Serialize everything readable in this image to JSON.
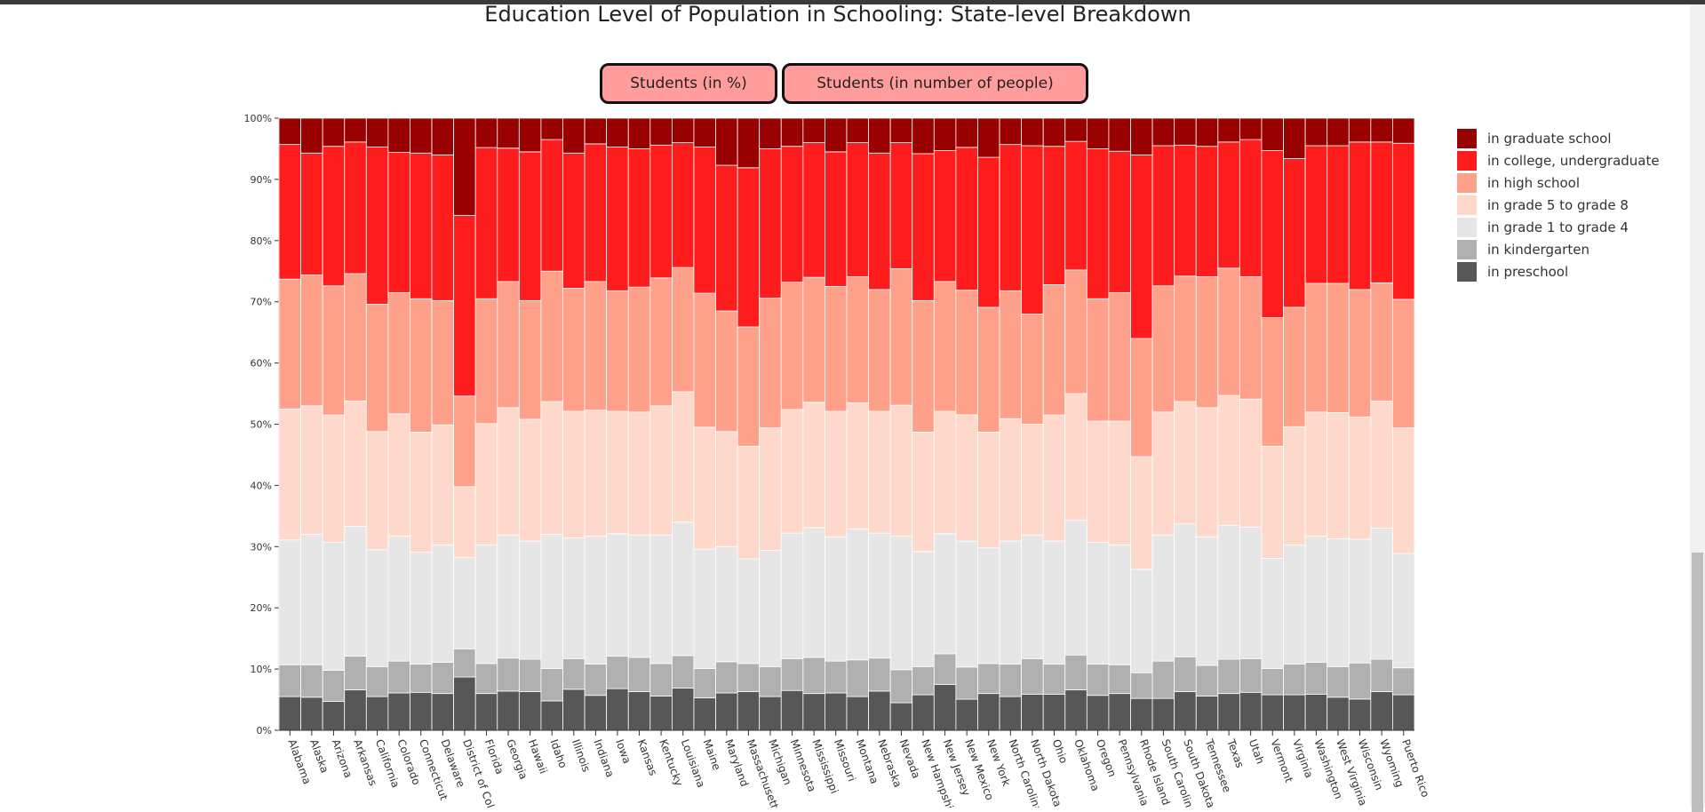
{
  "title": "Education Level of Population in Schooling: State-level Breakdown",
  "buttons": {
    "percent": "Students (in %)",
    "number": "Students (in number of people)"
  },
  "legend": [
    {
      "label": "in graduate school",
      "color": "#990000"
    },
    {
      "label": "in college, undergraduate",
      "color": "#ff1c1c"
    },
    {
      "label": "in high school",
      "color": "#ffa08a"
    },
    {
      "label": "in grade 5 to grade 8",
      "color": "#ffd8cc"
    },
    {
      "label": "in grade 1 to grade 4",
      "color": "#e6e6e6"
    },
    {
      "label": "in kindergarten",
      "color": "#b0b0b0"
    },
    {
      "label": "in preschool",
      "color": "#575757"
    }
  ],
  "chart_data": {
    "type": "bar",
    "stacked": true,
    "title": "Education Level of Population in Schooling: State-level Breakdown",
    "ylim": [
      0,
      100
    ],
    "yticks": [
      "0%",
      "10%",
      "20%",
      "30%",
      "40%",
      "50%",
      "60%",
      "70%",
      "80%",
      "90%",
      "100%"
    ],
    "categories": [
      "Alabama",
      "Alaska",
      "Arizona",
      "Arkansas",
      "California",
      "Colorado",
      "Connecticut",
      "Delaware",
      "District of Columbia",
      "Florida",
      "Georgia",
      "Hawaii",
      "Idaho",
      "Illinois",
      "Indiana",
      "Iowa",
      "Kansas",
      "Kentucky",
      "Louisiana",
      "Maine",
      "Maryland",
      "Massachusetts",
      "Michigan",
      "Minnesota",
      "Mississippi",
      "Missouri",
      "Montana",
      "Nebraska",
      "Nevada",
      "New Hampshire",
      "New Jersey",
      "New Mexico",
      "New York",
      "North Carolina",
      "North Dakota",
      "Ohio",
      "Oklahoma",
      "Oregon",
      "Pennsylvania",
      "Rhode Island",
      "South Carolina",
      "South Dakota",
      "Tennessee",
      "Texas",
      "Utah",
      "Vermont",
      "Virginia",
      "Washington",
      "West Virginia",
      "Wisconsin",
      "Wyoming",
      "Puerto Rico"
    ],
    "series": [
      {
        "name": "in preschool",
        "color": "#575757",
        "values": [
          5.5,
          5.4,
          4.7,
          6.6,
          5.5,
          6.1,
          6.2,
          6.0,
          8.7,
          6.0,
          6.4,
          6.3,
          4.8,
          6.7,
          5.7,
          6.8,
          6.3,
          5.6,
          6.9,
          5.3,
          6.1,
          6.3,
          5.5,
          6.5,
          6.0,
          6.1,
          5.5,
          6.4,
          4.5,
          5.8,
          7.5,
          5.1,
          6.0,
          5.5,
          5.9,
          5.9,
          6.6,
          5.7,
          6.0,
          5.2,
          5.2,
          6.3,
          5.6,
          6.0,
          6.2,
          5.8,
          5.8,
          5.9,
          5.4,
          5.1,
          6.3,
          5.8
        ]
      },
      {
        "name": "in kindergarten",
        "color": "#b0b0b0",
        "values": [
          5.2,
          5.3,
          5.1,
          5.5,
          4.9,
          5.2,
          4.6,
          5.1,
          4.6,
          4.9,
          5.4,
          5.3,
          5.3,
          5.0,
          5.1,
          5.3,
          5.6,
          5.3,
          5.3,
          4.8,
          5.1,
          4.6,
          4.9,
          5.2,
          5.9,
          5.2,
          6.0,
          5.4,
          5.4,
          4.6,
          5.0,
          5.3,
          4.9,
          5.3,
          5.8,
          4.9,
          5.7,
          5.1,
          4.7,
          4.2,
          6.1,
          5.7,
          5.0,
          5.6,
          5.5,
          4.3,
          5.0,
          5.2,
          5.0,
          5.9,
          5.3,
          4.4
        ]
      },
      {
        "name": "in grade 1 to grade 4",
        "color": "#e6e6e6",
        "values": [
          20.4,
          21.3,
          20.9,
          21.2,
          19.1,
          20.4,
          18.3,
          19.2,
          14.9,
          19.4,
          20.1,
          19.3,
          21.9,
          19.7,
          20.9,
          20.0,
          20.0,
          21.0,
          21.8,
          19.5,
          18.8,
          17.1,
          19.0,
          20.5,
          21.2,
          20.3,
          21.4,
          20.4,
          21.8,
          18.8,
          19.6,
          20.7,
          18.9,
          20.1,
          20.2,
          20.1,
          22.0,
          19.9,
          19.6,
          16.9,
          20.6,
          21.7,
          21.0,
          21.9,
          21.5,
          18.0,
          19.5,
          20.6,
          20.9,
          20.2,
          21.4,
          18.7
        ]
      },
      {
        "name": "in grade 5 to grade 8",
        "color": "#ffd8cc",
        "values": [
          21.4,
          21.0,
          20.8,
          20.5,
          19.3,
          20.0,
          19.6,
          19.6,
          11.6,
          19.8,
          20.8,
          19.9,
          21.7,
          20.7,
          20.6,
          20.0,
          20.1,
          21.1,
          21.3,
          19.9,
          18.8,
          18.4,
          20.0,
          20.2,
          20.5,
          20.5,
          20.6,
          19.9,
          21.4,
          19.5,
          20.0,
          20.8,
          18.9,
          20.0,
          18.1,
          20.6,
          20.7,
          19.8,
          20.2,
          18.4,
          20.1,
          20.0,
          21.1,
          21.2,
          20.9,
          18.3,
          19.3,
          20.3,
          20.6,
          20.0,
          20.8,
          20.5
        ]
      },
      {
        "name": "in high school",
        "color": "#ffa08a",
        "values": [
          21.2,
          21.4,
          21.1,
          20.8,
          20.8,
          19.8,
          21.8,
          20.3,
          14.8,
          20.4,
          20.6,
          19.4,
          21.3,
          20.1,
          21.0,
          19.7,
          20.4,
          20.9,
          20.3,
          21.9,
          19.7,
          19.5,
          21.2,
          20.8,
          20.4,
          20.4,
          20.6,
          19.9,
          22.3,
          21.5,
          21.2,
          20.5,
          20.4,
          20.9,
          18.0,
          21.3,
          20.2,
          20.0,
          21.0,
          19.3,
          20.6,
          20.5,
          21.4,
          20.8,
          20.0,
          21.0,
          19.5,
          21.0,
          21.1,
          20.8,
          19.3,
          21.0
        ]
      },
      {
        "name": "in college, undergraduate",
        "color": "#ff1c1c",
        "values": [
          22.0,
          19.9,
          22.8,
          21.5,
          25.7,
          22.9,
          23.8,
          23.8,
          29.5,
          24.7,
          21.8,
          24.3,
          21.5,
          22.1,
          22.5,
          23.5,
          22.6,
          21.7,
          20.4,
          23.9,
          23.8,
          26.0,
          24.4,
          22.2,
          22.0,
          22.0,
          21.9,
          22.3,
          20.6,
          24.0,
          21.4,
          23.5,
          24.5,
          23.9,
          27.5,
          22.6,
          21.0,
          24.5,
          23.1,
          30.0,
          22.9,
          21.4,
          21.3,
          20.6,
          22.4,
          27.3,
          24.3,
          22.5,
          22.5,
          24.1,
          23.0,
          25.5
        ]
      },
      {
        "name": "in graduate school",
        "color": "#990000",
        "values": [
          4.3,
          5.7,
          4.6,
          3.9,
          4.7,
          5.6,
          5.7,
          6.0,
          15.9,
          4.8,
          4.9,
          5.5,
          3.5,
          5.7,
          4.2,
          4.7,
          5.0,
          4.4,
          4.0,
          4.7,
          7.7,
          8.1,
          5.0,
          4.6,
          4.0,
          5.5,
          4.0,
          5.7,
          4.0,
          5.8,
          5.3,
          4.8,
          6.4,
          4.3,
          4.5,
          4.6,
          3.8,
          5.0,
          5.4,
          6.0,
          4.5,
          4.4,
          4.6,
          3.9,
          3.5,
          5.3,
          6.6,
          4.5,
          4.5,
          3.9,
          3.9,
          4.1
        ]
      }
    ]
  }
}
